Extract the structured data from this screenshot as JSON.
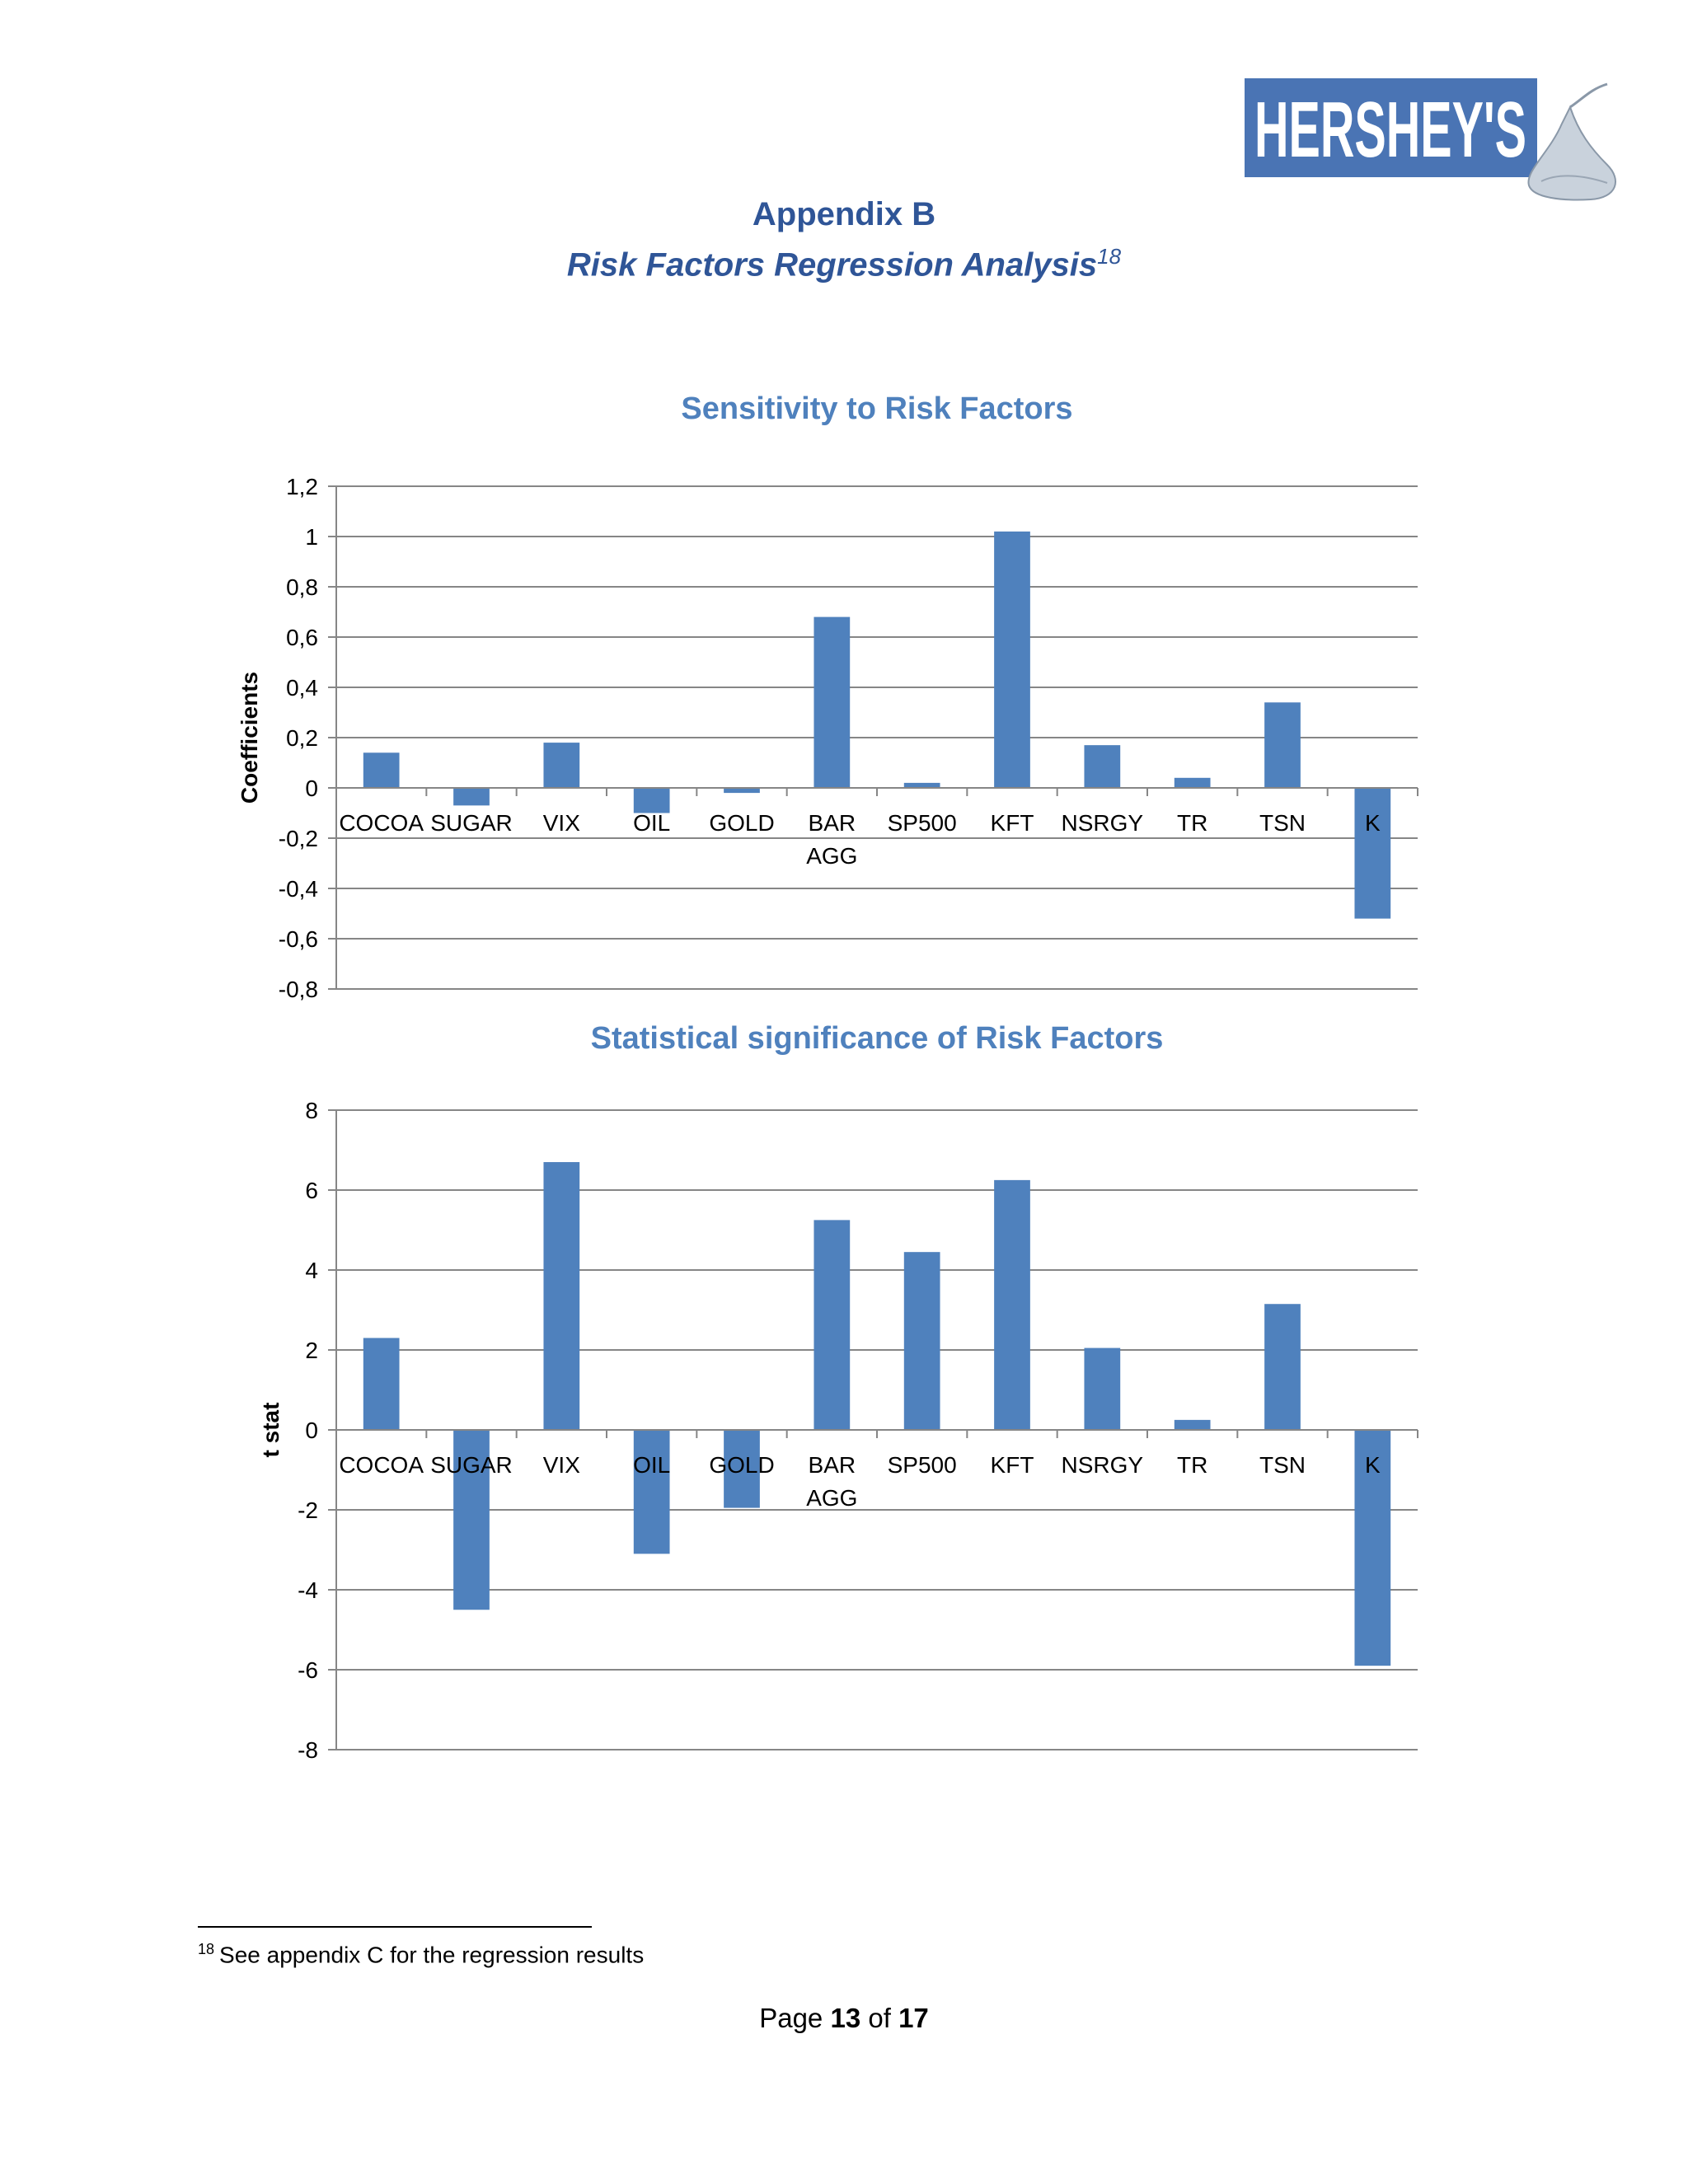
{
  "brand": {
    "logo_text": "HERSHEY'S",
    "brand_color": "#4a74b4"
  },
  "header": {
    "title": "Appendix B",
    "subtitle": "Risk Factors Regression Analysis",
    "footnote_ref": "18"
  },
  "chart_data": [
    {
      "type": "bar",
      "title": "Sensitivity to Risk Factors",
      "ylabel": "Coefficients",
      "xlabel": "",
      "categories": [
        "COCOA",
        "SUGAR",
        "VIX",
        "OIL",
        "GOLD",
        "BAR AGG",
        "SP500",
        "KFT",
        "NSRGY",
        "TR",
        "TSN",
        "K"
      ],
      "values": [
        0.14,
        -0.07,
        0.18,
        -0.1,
        -0.02,
        0.68,
        0.02,
        1.02,
        0.17,
        0.04,
        0.34,
        -0.52
      ],
      "ylim": [
        -0.8,
        1.2
      ],
      "yticks": [
        "1,2",
        "1",
        "0,8",
        "0,6",
        "0,4",
        "0,2",
        "0",
        "-0,2",
        "-0,4",
        "-0,6",
        "-0,8"
      ],
      "ytick_values": [
        1.2,
        1,
        0.8,
        0.6,
        0.4,
        0.2,
        0,
        -0.2,
        -0.4,
        -0.6,
        -0.8
      ],
      "grid": true,
      "bar_color": "#4f81bd"
    },
    {
      "type": "bar",
      "title": "Statistical significance of Risk Factors",
      "ylabel": "t stat",
      "xlabel": "",
      "categories": [
        "COCOA",
        "SUGAR",
        "VIX",
        "OIL",
        "GOLD",
        "BAR AGG",
        "SP500",
        "KFT",
        "NSRGY",
        "TR",
        "TSN",
        "K"
      ],
      "values": [
        2.3,
        -4.5,
        6.7,
        -3.1,
        -1.95,
        5.25,
        4.45,
        6.25,
        2.05,
        0.25,
        3.15,
        -5.9
      ],
      "ylim": [
        -8,
        8
      ],
      "yticks": [
        "8",
        "6",
        "4",
        "2",
        "0",
        "-2",
        "-4",
        "-6",
        "-8"
      ],
      "ytick_values": [
        8,
        6,
        4,
        2,
        0,
        -2,
        -4,
        -6,
        -8
      ],
      "grid": true,
      "bar_color": "#4f81bd"
    }
  ],
  "footnote": {
    "number": "18",
    "text": "See appendix C for the regression results"
  },
  "page": {
    "label": "Page",
    "current": "13",
    "of": "of",
    "total": "17"
  }
}
